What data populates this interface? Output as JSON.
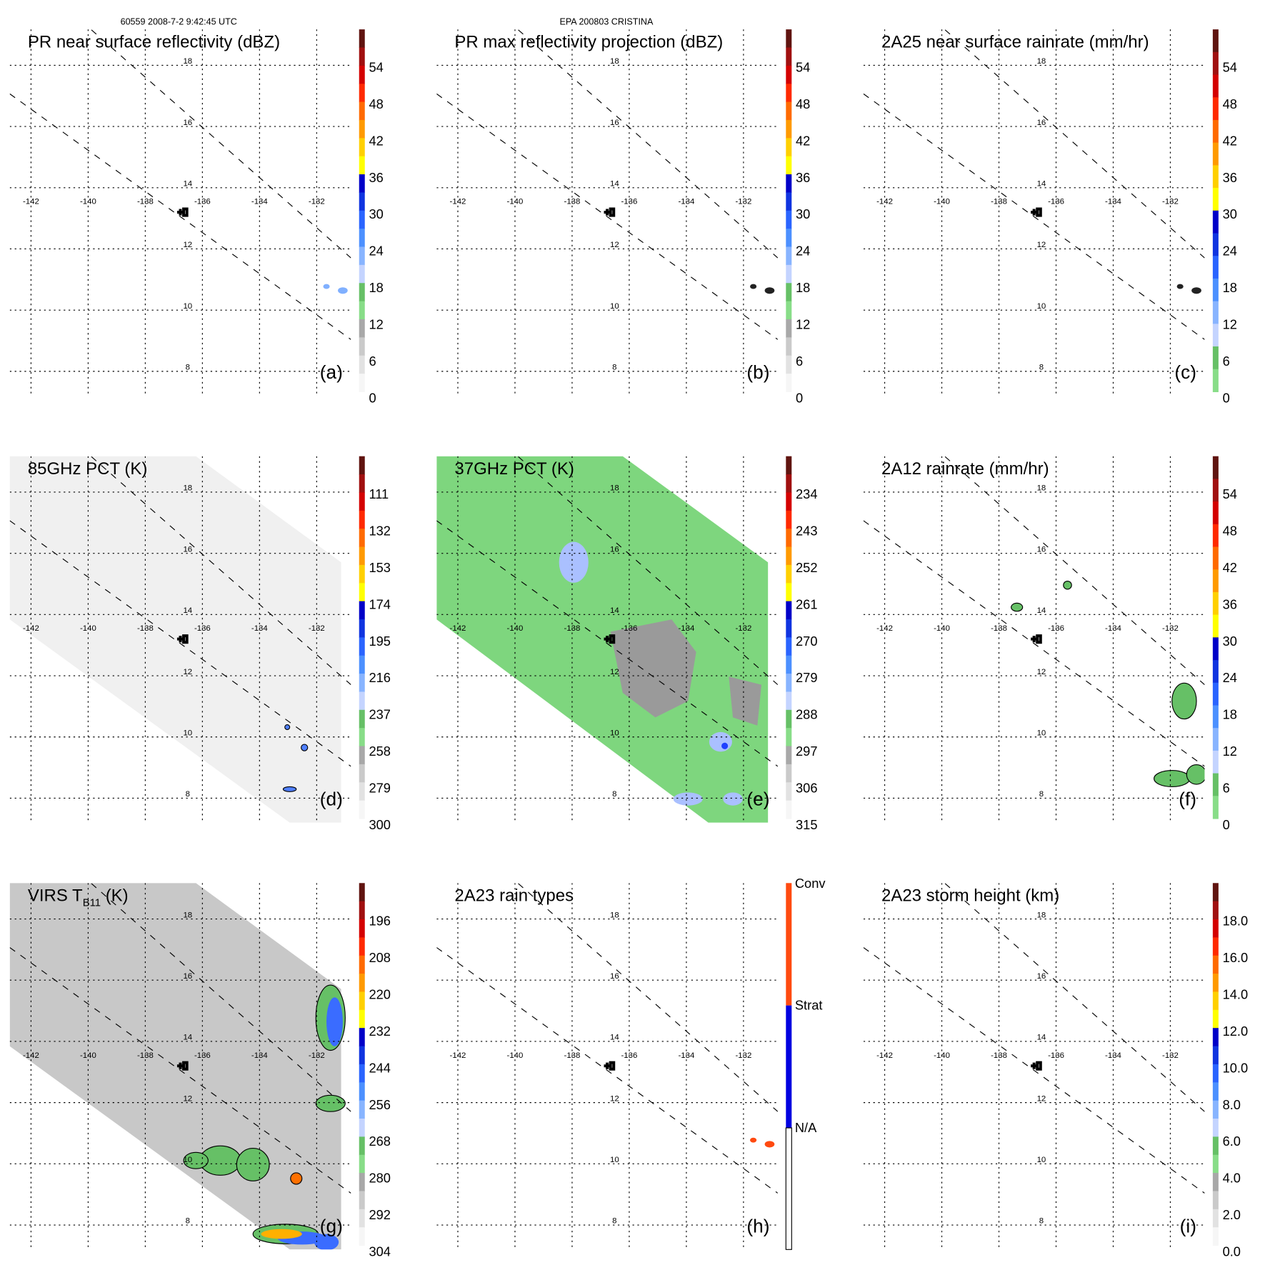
{
  "header": {
    "left": "60559 2008-7-2 9:42:45 UTC",
    "center": "EPA 200803 CRISTINA"
  },
  "map": {
    "lon_labels": [
      "-142",
      "-140",
      "-138",
      "-136",
      "-134",
      "-132"
    ],
    "lat_labels": [
      "18",
      "16",
      "14",
      "12",
      "10",
      "8"
    ]
  },
  "palettes": {
    "standard": [
      "#f6f6f6",
      "#e2e2e2",
      "#cacaca",
      "#a8a8a8",
      "#88dd88",
      "#66c066",
      "#c4d4ff",
      "#88b4ff",
      "#4c90ff",
      "#2a64ff",
      "#1034e0",
      "#0000c8",
      "#ffff00",
      "#ffd000",
      "#ff9a00",
      "#ff6a00",
      "#ff2a00",
      "#d40000",
      "#a01010",
      "#601410"
    ],
    "rain": [
      "#88dd88",
      "#66c066",
      "#c4d4ff",
      "#88b4ff",
      "#4c90ff",
      "#2a64ff",
      "#1034e0",
      "#0000c8",
      "#ffff00",
      "#ffd000",
      "#ff9a00",
      "#ff6a00",
      "#ff2a00",
      "#d40000",
      "#a01010",
      "#601410"
    ],
    "types": [
      "#ffffff",
      "#0000e0",
      "#ff4a10"
    ]
  },
  "chart_data": [
    {
      "type": "heatmap",
      "panel": "(a)",
      "title": "PR near surface reflectivity (dBZ)",
      "palette": "standard",
      "ticks": [
        "54",
        "48",
        "42",
        "36",
        "30",
        "24",
        "18",
        "12",
        "6",
        "0"
      ]
    },
    {
      "type": "heatmap",
      "panel": "(b)",
      "title": "PR max reflectivity projection (dBZ)",
      "palette": "standard",
      "ticks": [
        "54",
        "48",
        "42",
        "36",
        "30",
        "24",
        "18",
        "12",
        "6",
        "0"
      ]
    },
    {
      "type": "heatmap",
      "panel": "(c)",
      "title": "2A25 near surface rainrate (mm/hr)",
      "palette": "rain",
      "ticks": [
        "54",
        "48",
        "42",
        "36",
        "30",
        "24",
        "18",
        "12",
        "6",
        "0"
      ]
    },
    {
      "type": "heatmap",
      "panel": "(d)",
      "title": "85GHz PCT (K)",
      "palette": "standard",
      "ticks": [
        "111",
        "132",
        "153",
        "174",
        "195",
        "216",
        "237",
        "258",
        "279",
        "300"
      ]
    },
    {
      "type": "heatmap",
      "panel": "(e)",
      "title": "37GHz PCT (K)",
      "palette": "standard",
      "ticks": [
        "234",
        "243",
        "252",
        "261",
        "270",
        "279",
        "288",
        "297",
        "306",
        "315"
      ]
    },
    {
      "type": "heatmap",
      "panel": "(f)",
      "title": "2A12 rainrate (mm/hr)",
      "palette": "rain",
      "ticks": [
        "54",
        "48",
        "42",
        "36",
        "30",
        "24",
        "18",
        "12",
        "6",
        "0"
      ]
    },
    {
      "type": "heatmap",
      "panel": "(g)",
      "title": "VIRS T",
      "title_sub": "B11",
      "title_suffix": "(K)",
      "palette": "standard",
      "ticks": [
        "196",
        "208",
        "220",
        "232",
        "244",
        "256",
        "268",
        "280",
        "292",
        "304"
      ]
    },
    {
      "type": "heatmap",
      "panel": "(h)",
      "title": "2A23 rain types",
      "palette": "types",
      "ticks": [
        "Conv",
        "Strat",
        "N/A"
      ]
    },
    {
      "type": "heatmap",
      "panel": "(i)",
      "title": "2A23 storm height (km)",
      "palette": "standard",
      "ticks": [
        "18.0",
        "16.0",
        "14.0",
        "12.0",
        "10.0",
        "8.0",
        "6.0",
        "4.0",
        "2.0",
        "0.0"
      ]
    }
  ]
}
